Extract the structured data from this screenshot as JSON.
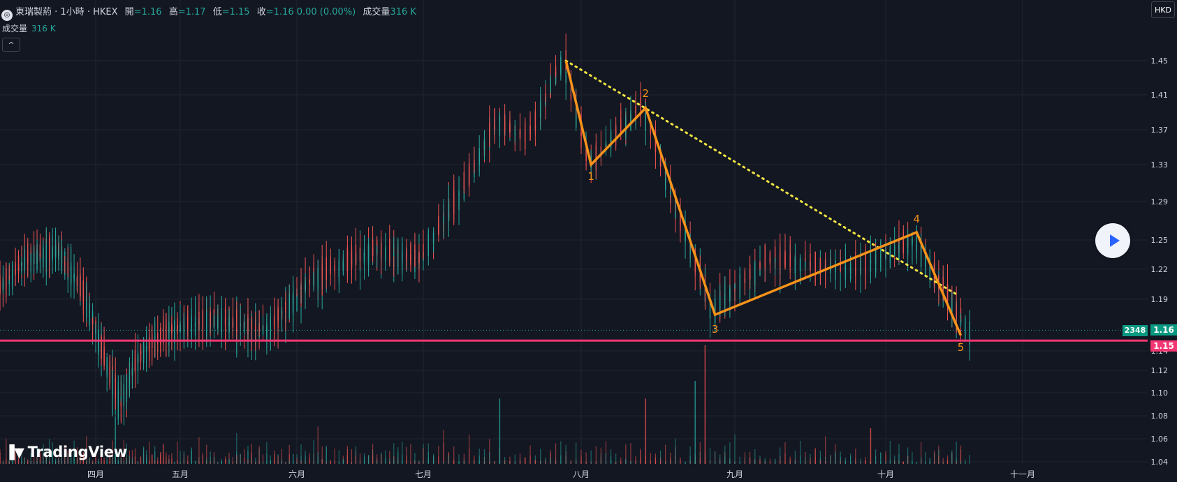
{
  "legend": {
    "symbol": "東瑞製葯",
    "interval": "1小時",
    "exchange": "HKEX",
    "open_label": "開",
    "open": "1.16",
    "high_label": "高",
    "high": "1.17",
    "low_label": "低",
    "low": "1.15",
    "close_label": "收",
    "close": "1.16",
    "change": "0.00 (0.00%)",
    "volume_label": "成交量",
    "volume": "316 K"
  },
  "volume_pane": {
    "label": "成交量",
    "value": "316 K"
  },
  "collapse_icon": "chevron-up-icon",
  "currency": "HKD",
  "branding": "TradingView",
  "last_volume_tag": "2348",
  "colors": {
    "up": "#26a69a",
    "down": "#ef5350",
    "wave": "#f7931a",
    "support": "#f23672",
    "trendline": "#f0e442",
    "background": "#131722"
  },
  "chart_data": {
    "type": "candlestick",
    "title": "東瑞製葯 · 1小時 · HKEX",
    "y_ticks": [
      1.04,
      1.06,
      1.08,
      1.1,
      1.12,
      1.14,
      1.19,
      1.22,
      1.25,
      1.29,
      1.33,
      1.37,
      1.41,
      1.45
    ],
    "ylim": [
      1.03,
      1.49
    ],
    "x_ticks": [
      "四月",
      "五月",
      "六月",
      "七月",
      "八月",
      "九月",
      "十月",
      "十一月"
    ],
    "x_tick_dates": [
      "2024-04-01",
      "2024-05-01",
      "2024-06-01",
      "2024-07-01",
      "2024-08-01",
      "2024-09-01",
      "2024-10-01",
      "2024-11-01"
    ],
    "price_path": [
      {
        "date": "2024-03-01",
        "price": 1.2
      },
      {
        "date": "2024-03-10",
        "price": 1.23
      },
      {
        "date": "2024-03-20",
        "price": 1.24
      },
      {
        "date": "2024-03-28",
        "price": 1.2
      },
      {
        "date": "2024-04-05",
        "price": 1.13
      },
      {
        "date": "2024-04-10",
        "price": 1.09
      },
      {
        "date": "2024-04-18",
        "price": 1.14
      },
      {
        "date": "2024-04-28",
        "price": 1.16
      },
      {
        "date": "2024-05-10",
        "price": 1.17
      },
      {
        "date": "2024-05-25",
        "price": 1.16
      },
      {
        "date": "2024-06-05",
        "price": 1.21
      },
      {
        "date": "2024-06-20",
        "price": 1.24
      },
      {
        "date": "2024-07-01",
        "price": 1.23
      },
      {
        "date": "2024-07-10",
        "price": 1.31
      },
      {
        "date": "2024-07-16",
        "price": 1.38
      },
      {
        "date": "2024-07-22",
        "price": 1.36
      },
      {
        "date": "2024-07-29",
        "price": 1.45
      },
      {
        "date": "2024-08-03",
        "price": 1.33
      },
      {
        "date": "2024-08-14",
        "price": 1.4
      },
      {
        "date": "2024-08-20",
        "price": 1.29
      },
      {
        "date": "2024-08-28",
        "price": 1.18
      },
      {
        "date": "2024-09-08",
        "price": 1.23
      },
      {
        "date": "2024-09-25",
        "price": 1.22
      },
      {
        "date": "2024-10-08",
        "price": 1.25
      },
      {
        "date": "2024-10-12",
        "price": 1.22
      },
      {
        "date": "2024-10-20",
        "price": 1.16
      }
    ],
    "last_price": 1.16,
    "support_level": 1.15,
    "wave_points": [
      {
        "label": "",
        "date": "2024-07-29",
        "price": 1.45
      },
      {
        "label": "1",
        "date": "2024-08-03",
        "price": 1.33
      },
      {
        "label": "2",
        "date": "2024-08-14",
        "price": 1.395
      },
      {
        "label": "3",
        "date": "2024-08-28",
        "price": 1.175
      },
      {
        "label": "4",
        "date": "2024-10-08",
        "price": 1.258
      },
      {
        "label": "5",
        "date": "2024-10-18",
        "price": 1.155
      }
    ],
    "trendline": [
      {
        "date": "2024-07-29",
        "price": 1.45
      },
      {
        "date": "2024-10-17",
        "price": 1.195
      }
    ],
    "volume_spikes": [
      {
        "date": "2024-07-16",
        "rel": 0.55
      },
      {
        "date": "2024-08-14",
        "rel": 0.55
      },
      {
        "date": "2024-08-24",
        "rel": 0.7
      },
      {
        "date": "2024-08-26",
        "rel": 1.0
      },
      {
        "date": "2024-04-08",
        "rel": 0.4
      },
      {
        "date": "2024-09-28",
        "rel": 0.3
      }
    ]
  }
}
